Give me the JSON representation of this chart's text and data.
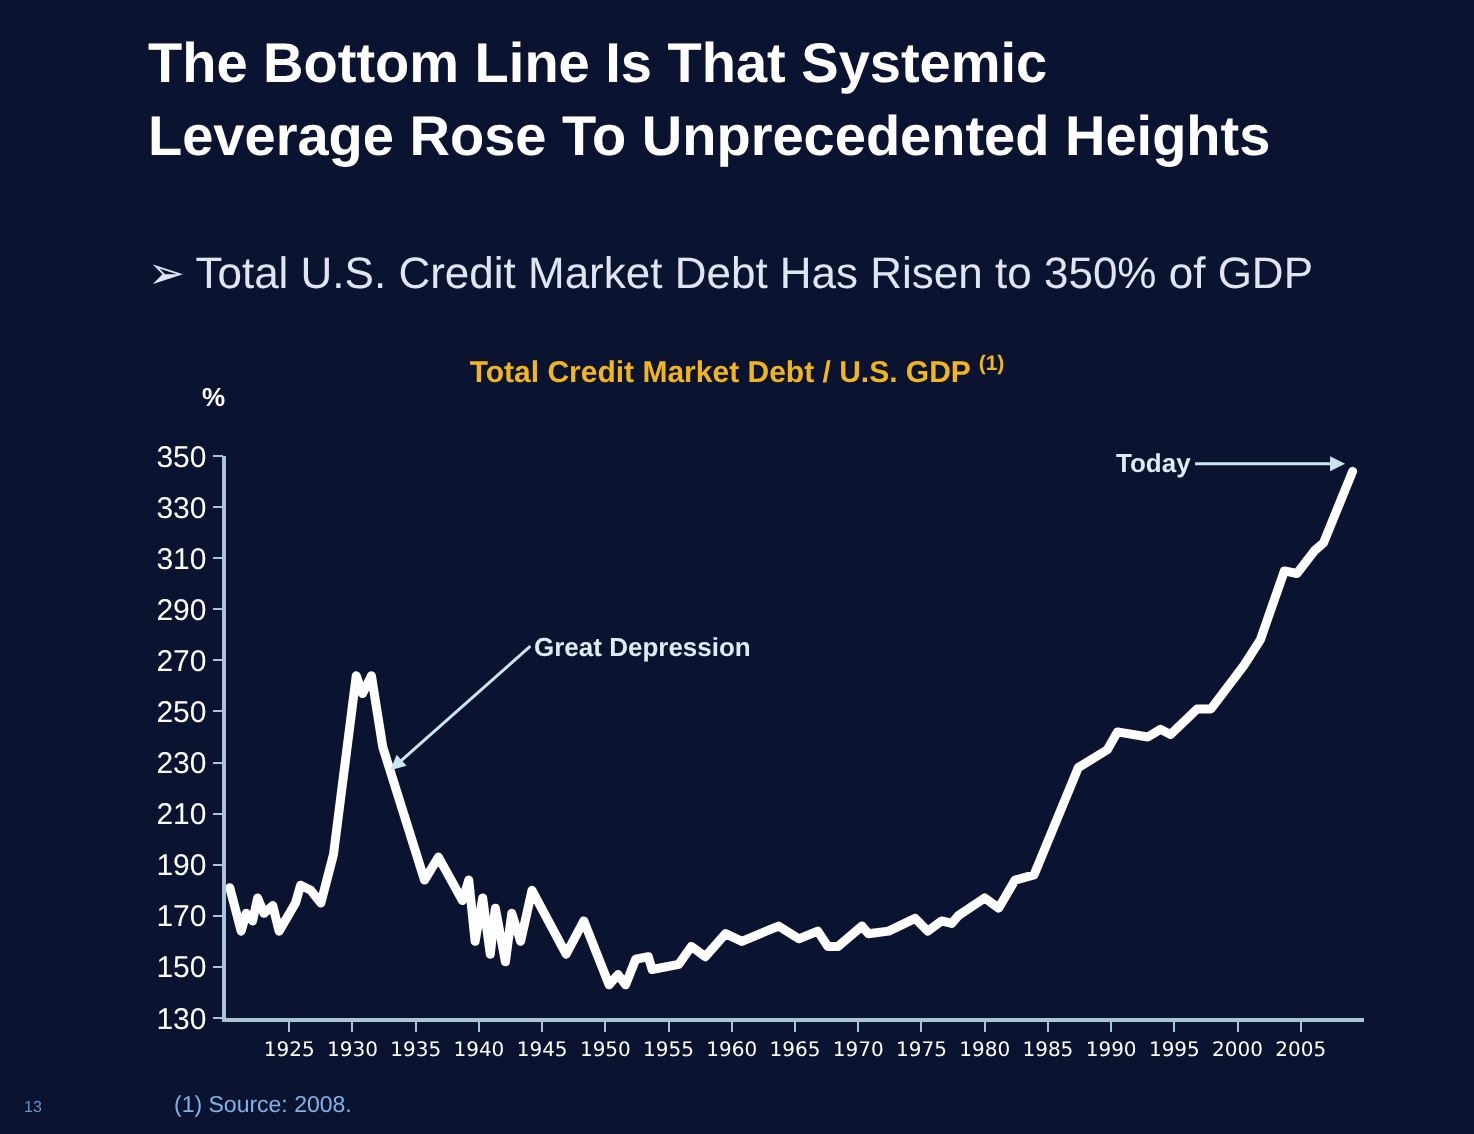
{
  "chart_data": {
    "type": "line",
    "title": "Total Credit Market Debt / U.S. GDP $^{(1)}$",
    "ylabel": "%",
    "annotations": [
      "The Bottom Line Is That Systemic Leverage Rose To Unprecedented Heights",
      "➢ Total U.S. Credit Market Debt Has Risen to 350% of GDP",
      {
        "text": "Great Depression",
        "x": 1933,
        "y": 227
      },
      {
        "text": "Today",
        "x": 2008.5,
        "y": 347
      },
      "(1) Source: 2008.",
      "13"
    ],
    "xlim": [
      1920,
      2010
    ],
    "xticks": [
      1925,
      1930,
      1935,
      1940,
      1945,
      1950,
      1955,
      1960,
      1965,
      1970,
      1975,
      1980,
      1985,
      1990,
      1995,
      2000,
      2005
    ],
    "ylim": [
      130,
      350
    ],
    "yticks": [
      130,
      150,
      170,
      190,
      210,
      230,
      250,
      270,
      290,
      310,
      330,
      350
    ],
    "grid": false,
    "marker": "none",
    "line_style": "solid",
    "series": [
      {
        "color": "#ffffff",
        "x": [
          1920.3,
          1921.2,
          1921.6,
          1922.1,
          1922.5,
          1923,
          1923.7,
          1924.2,
          1925.5,
          1925.9,
          1926.7,
          1927.5,
          1928.5,
          1930.3,
          1930.8,
          1931.5,
          1932.4,
          1935.7,
          1936.8,
          1938.7,
          1939.2,
          1939.7,
          1940.3,
          1940.9,
          1941.3,
          1942.1,
          1942.6,
          1943.3,
          1944.2,
          1946.9,
          1948.3,
          1950.3,
          1951,
          1951.6,
          1952.4,
          1953.4,
          1953.7,
          1955.8,
          1956.8,
          1957.9,
          1959.5,
          1960.8,
          1963.7,
          1965.3,
          1966.8,
          1967.6,
          1968.4,
          1970.3,
          1970.8,
          1972.4,
          1974.5,
          1975.5,
          1976.6,
          1977.4,
          1977.9,
          1980,
          1981.1,
          1982.4,
          1983.9,
          1987.4,
          1989.7,
          1990.5,
          1992.9,
          1993.9,
          1994.7,
          1996.8,
          1997.9,
          2000.5,
          2001.8,
          2003.7,
          2004.7,
          2006.1,
          2006.8,
          2009.1
        ],
        "values": [
          181,
          164,
          171,
          168,
          177,
          171,
          174,
          164,
          175,
          182,
          180,
          175,
          194,
          264,
          257,
          264,
          236,
          184,
          193,
          176,
          184,
          160,
          177,
          155,
          173,
          152,
          171,
          160,
          180,
          155,
          168,
          143,
          147,
          143,
          153,
          154,
          149,
          151,
          158,
          154,
          163,
          160,
          166,
          161,
          164,
          158,
          158,
          166,
          163,
          164,
          169,
          164,
          168,
          167,
          170,
          177,
          173,
          184,
          186,
          228,
          235,
          242,
          240,
          243,
          241,
          251,
          251,
          268,
          278,
          305,
          304,
          313,
          316,
          344
        ]
      }
    ]
  }
}
